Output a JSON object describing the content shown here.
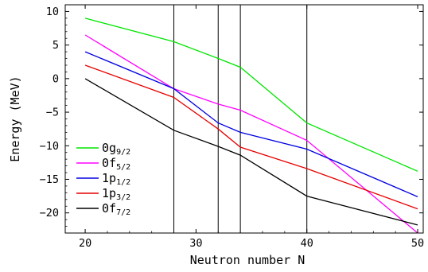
{
  "chart_data": {
    "type": "line",
    "xlabel": "Neutron number N",
    "ylabel": "Energy (MeV)",
    "xlim": [
      18.2,
      50.5
    ],
    "ylim": [
      -23,
      11
    ],
    "x_ticks": [
      20,
      30,
      40,
      50
    ],
    "y_ticks": [
      10,
      5,
      0,
      -5,
      -10,
      -15,
      -20
    ],
    "vertical_lines": [
      28,
      32,
      34,
      40
    ],
    "grid": false,
    "legend_position": "bottom-left",
    "series": [
      {
        "name": "0g",
        "subscript": "9/2",
        "color": "#00e600",
        "x": [
          20,
          28,
          32,
          34,
          40,
          50
        ],
        "y": [
          9.0,
          5.5,
          3.0,
          1.7,
          -6.6,
          -13.8
        ]
      },
      {
        "name": "0f",
        "subscript": "5/2",
        "color": "#ff00ff",
        "x": [
          20,
          28,
          32,
          34,
          40,
          50
        ],
        "y": [
          6.5,
          -1.5,
          -3.8,
          -4.7,
          -9.2,
          -23.0
        ]
      },
      {
        "name": "1p",
        "subscript": "1/2",
        "color": "#0000e0",
        "x": [
          20,
          28,
          32,
          34,
          40,
          50
        ],
        "y": [
          4.0,
          -1.5,
          -6.6,
          -8.0,
          -10.5,
          -17.6
        ]
      },
      {
        "name": "1p",
        "subscript": "3/2",
        "color": "#e60000",
        "x": [
          20,
          28,
          32,
          34,
          40,
          50
        ],
        "y": [
          2.0,
          -2.8,
          -7.5,
          -10.2,
          -13.4,
          -19.4
        ]
      },
      {
        "name": "0f",
        "subscript": "7/2",
        "color": "#000000",
        "x": [
          20,
          28,
          32,
          34,
          40,
          50
        ],
        "y": [
          0.0,
          -7.7,
          -10.1,
          -11.4,
          -17.5,
          -21.8
        ]
      }
    ]
  }
}
